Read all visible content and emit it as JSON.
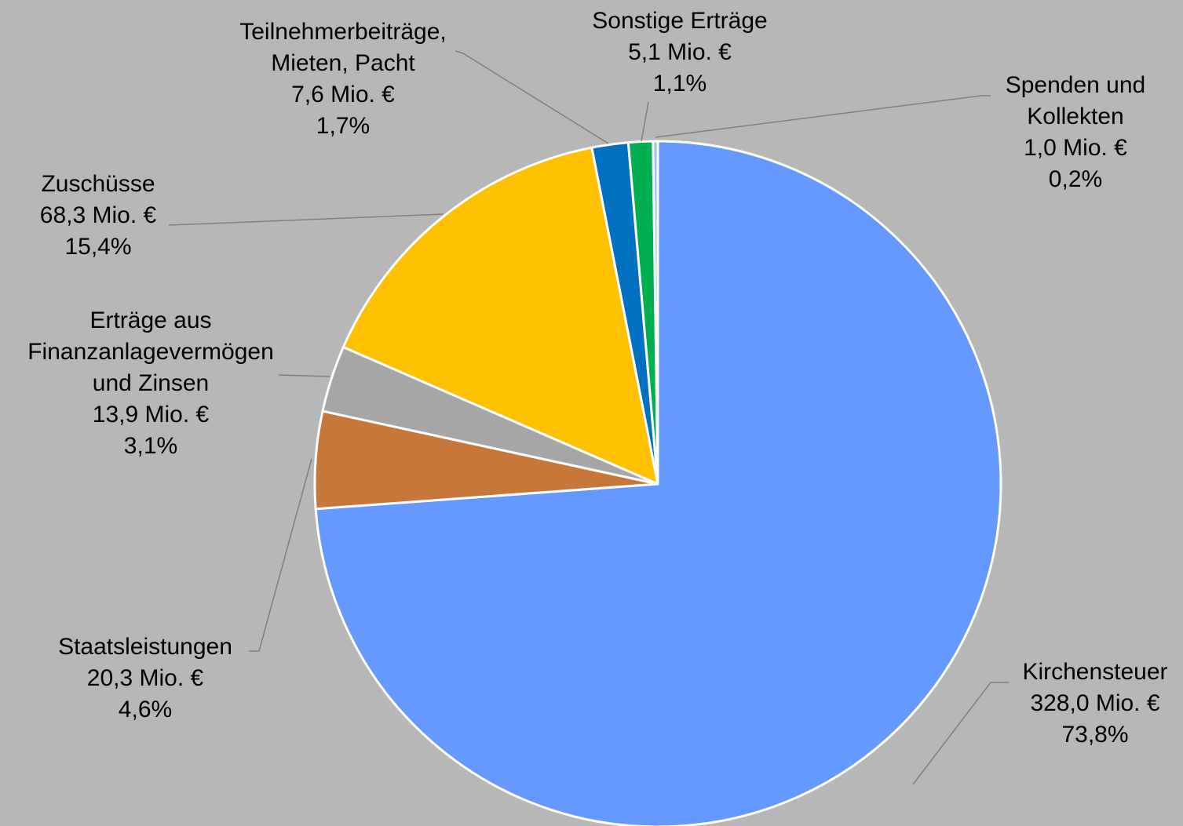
{
  "chart_data": {
    "type": "pie",
    "categories": [
      [
        "Kirchensteuer"
      ],
      [
        "Staatsleistungen"
      ],
      [
        "Erträge aus",
        "Finanzanlagevermögen",
        "und Zinsen"
      ],
      [
        "Zuschüsse"
      ],
      [
        "Teilnehmerbeiträge,",
        "Mieten, Pacht"
      ],
      [
        "Sonstige Erträge"
      ],
      [
        "Spenden und",
        "Kollekten"
      ]
    ],
    "values": [
      328.0,
      20.3,
      13.9,
      68.3,
      7.6,
      5.1,
      1.0
    ],
    "value_labels": [
      "328,0 Mio. €",
      "20,3 Mio. €",
      "13,9 Mio. €",
      "68,3 Mio. €",
      "7,6 Mio. €",
      "5,1 Mio. €",
      "1,0 Mio. €"
    ],
    "percentages": [
      73.8,
      4.6,
      3.1,
      15.4,
      1.7,
      1.1,
      0.2
    ],
    "percentage_labels": [
      "73,8%",
      "4,6%",
      "3,1%",
      "15,4%",
      "1,7%",
      "1,1%",
      "0,2%"
    ],
    "colors": [
      "#6699ff",
      "#c8773a",
      "#a6a6a6",
      "#ffc000",
      "#0070c0",
      "#00b050",
      "#9dc3e6"
    ]
  }
}
